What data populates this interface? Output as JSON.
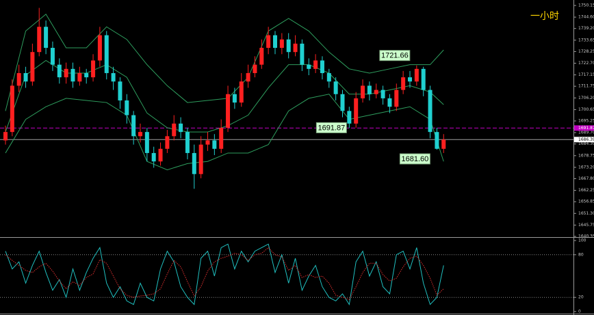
{
  "chart_data": [
    {
      "type": "candlestick",
      "title": "一小时",
      "title_color": "#ffd700",
      "up_color": "#ff2020",
      "down_color": "#20d0d0",
      "open": [
        1686,
        1690,
        1712,
        1718,
        1714,
        1728,
        1740,
        1730,
        1722,
        1716,
        1720,
        1714,
        1718,
        1716,
        1724,
        1736,
        1718,
        1714,
        1705,
        1698,
        1688,
        1690,
        1680,
        1676,
        1682,
        1688,
        1694,
        1690,
        1680,
        1670,
        1684,
        1686,
        1682,
        1692,
        1708,
        1704,
        1714,
        1718,
        1722,
        1730,
        1736,
        1730,
        1734,
        1728,
        1732,
        1722,
        1720,
        1724,
        1718,
        1714,
        1708,
        1700,
        1694,
        1706,
        1712,
        1708,
        1710,
        1706,
        1702,
        1710,
        1716,
        1714,
        1720,
        1710,
        1690,
        1682
      ],
      "high": [
        1693,
        1715,
        1722,
        1721,
        1732,
        1749,
        1743,
        1733,
        1725,
        1723,
        1723,
        1721,
        1720,
        1727,
        1740,
        1738,
        1721,
        1716,
        1708,
        1700,
        1694,
        1692,
        1683,
        1685,
        1691,
        1698,
        1697,
        1692,
        1684,
        1688,
        1690,
        1689,
        1696,
        1712,
        1711,
        1718,
        1722,
        1726,
        1734,
        1740,
        1738,
        1737,
        1737,
        1736,
        1734,
        1725,
        1727,
        1726,
        1720,
        1716,
        1710,
        1702,
        1709,
        1715,
        1714,
        1713,
        1712,
        1708,
        1713,
        1719,
        1719,
        1721.66,
        1721,
        1712,
        1692,
        1689
      ],
      "low": [
        1684,
        1688,
        1709,
        1711,
        1712,
        1726,
        1727,
        1719,
        1713,
        1713,
        1711,
        1712,
        1713,
        1714,
        1721,
        1715,
        1710,
        1701,
        1694,
        1684,
        1685,
        1676,
        1673,
        1674,
        1680,
        1686,
        1687,
        1677,
        1663,
        1668,
        1681,
        1679,
        1680,
        1690,
        1701,
        1702,
        1711,
        1716,
        1720,
        1727,
        1727,
        1727,
        1725,
        1726,
        1719,
        1717,
        1718,
        1715,
        1711,
        1705,
        1697,
        1691.87,
        1692,
        1704,
        1705,
        1706,
        1703,
        1699,
        1700,
        1708,
        1711,
        1712,
        1707,
        1687,
        1681.6,
        1680
      ],
      "close": [
        1690,
        1712,
        1718,
        1714,
        1728,
        1740,
        1730,
        1722,
        1716,
        1720,
        1714,
        1718,
        1716,
        1724,
        1736,
        1718,
        1714,
        1705,
        1698,
        1688,
        1690,
        1680,
        1676,
        1682,
        1688,
        1694,
        1690,
        1680,
        1670,
        1684,
        1686,
        1682,
        1692,
        1708,
        1704,
        1714,
        1718,
        1722,
        1730,
        1736,
        1730,
        1734,
        1728,
        1732,
        1722,
        1720,
        1724,
        1718,
        1714,
        1708,
        1700,
        1694,
        1706,
        1712,
        1708,
        1710,
        1706,
        1702,
        1710,
        1716,
        1714,
        1720,
        1710,
        1690,
        1682,
        1686.39
      ],
      "bands": {
        "color": "#2e9e5e",
        "x": [
          0,
          3,
          6,
          9,
          12,
          15,
          18,
          21,
          24,
          27,
          30,
          33,
          36,
          39,
          42,
          45,
          48,
          51,
          54,
          57,
          60,
          63,
          65
        ],
        "upper": [
          1700,
          1738,
          1746,
          1730,
          1730,
          1740,
          1734,
          1722,
          1712,
          1704,
          1705,
          1706,
          1716,
          1738,
          1744,
          1738,
          1728,
          1720,
          1718,
          1720,
          1722,
          1722,
          1729
        ],
        "middle": [
          1690,
          1717,
          1724,
          1718,
          1718,
          1722,
          1716,
          1699,
          1692,
          1690,
          1690,
          1693,
          1698,
          1711,
          1722,
          1722,
          1718,
          1708,
          1708,
          1710,
          1712,
          1709,
          1703
        ],
        "lower": [
          1680,
          1696,
          1702,
          1706,
          1705,
          1704,
          1698,
          1676,
          1672,
          1675,
          1676,
          1680,
          1680,
          1684,
          1700,
          1706,
          1708,
          1696,
          1698,
          1700,
          1702,
          1696,
          1676
        ]
      },
      "price_lines": [
        {
          "value": 1691.87,
          "color": "#c000c0",
          "style": "dashed"
        },
        {
          "value": 1686.39,
          "color": "#a0a0a0",
          "style": "solid"
        }
      ],
      "annotations": [
        {
          "text": "1721.66",
          "value": 1721.66,
          "index": 61
        },
        {
          "text": "1691.87",
          "value": 1691.87,
          "index": 51
        },
        {
          "text": "1681.60",
          "value": 1681.6,
          "index": 64
        }
      ],
      "ylim": [
        1640.35,
        1750.15
      ],
      "yticks": [
        1750.15,
        {
          "value": 1744.6,
          "label": "1744.60"
        },
        {
          "value": 1739.2,
          "label": "1739.20"
        },
        1733.65,
        1728.25,
        {
          "value": 1722.7,
          "label": "1722.70"
        },
        1717.15,
        1711.75,
        {
          "value": 1706.2,
          "label": "1706.20"
        },
        1700.65,
        1695.25,
        {
          "value": 1689.7,
          "label": "1689.70"
        },
        {
          "value": 1684.3,
          "label": "1684.30"
        },
        1678.75,
        {
          "value": 1673.2,
          "label": "1673.20"
        },
        {
          "value": 1667.8,
          "label": "1667.80"
        },
        1662.25,
        1656.85,
        {
          "value": 1651.3,
          "label": "1651.30"
        },
        1645.75,
        1640.35
      ]
    },
    {
      "type": "oscillator",
      "series": [
        {
          "color": "#20c0c0",
          "style": "solid",
          "values": [
            85,
            60,
            70,
            40,
            65,
            85,
            55,
            30,
            45,
            20,
            60,
            30,
            55,
            75,
            90,
            40,
            20,
            35,
            15,
            10,
            40,
            20,
            15,
            60,
            85,
            70,
            35,
            20,
            10,
            75,
            85,
            50,
            90,
            95,
            60,
            85,
            70,
            85,
            90,
            95,
            55,
            80,
            40,
            75,
            30,
            50,
            65,
            35,
            20,
            15,
            25,
            10,
            70,
            85,
            50,
            70,
            35,
            25,
            80,
            85,
            60,
            90,
            40,
            10,
            20,
            65
          ]
        },
        {
          "color": "#e03030",
          "style": "dotted",
          "values": [
            80,
            72,
            65,
            58,
            55,
            63,
            68,
            57,
            43,
            32,
            42,
            37,
            48,
            53,
            73,
            68,
            50,
            32,
            23,
            20,
            22,
            23,
            25,
            32,
            53,
            72,
            63,
            42,
            22,
            35,
            57,
            70,
            75,
            78,
            82,
            80,
            72,
            80,
            82,
            90,
            80,
            77,
            58,
            65,
            48,
            52,
            48,
            50,
            40,
            23,
            20,
            17,
            35,
            55,
            68,
            68,
            52,
            43,
            47,
            63,
            75,
            78,
            65,
            47,
            23,
            32
          ]
        }
      ],
      "levels": [
        80,
        20
      ],
      "ylim": [
        0,
        100
      ],
      "yticks": [
        100,
        80,
        20,
        0
      ]
    }
  ]
}
